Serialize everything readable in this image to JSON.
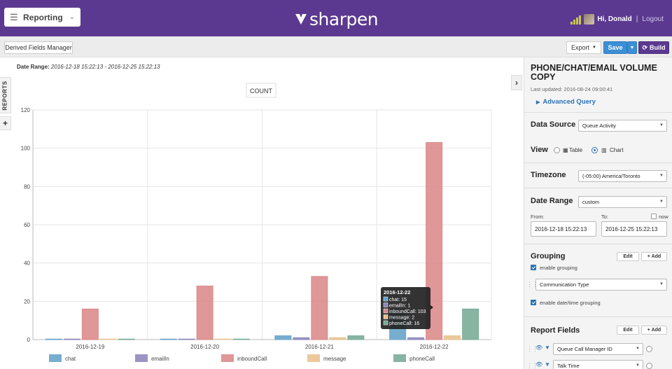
{
  "header": {
    "module": "Reporting",
    "brand": "sharpen",
    "greeting": "Hi, Donald",
    "separator": "|",
    "logout": "Logout"
  },
  "toolbar": {
    "derived_fields": "Derived Fields Manager",
    "export": "Export",
    "save": "Save",
    "build": "Build"
  },
  "main": {
    "date_range_label": "Date Range:",
    "date_range_value": "2016-12-18 15:22:13 - 2016-12-25 15:22:13",
    "reports_tab": "REPORTS",
    "plus": "+",
    "collapse": "›"
  },
  "chart_data": {
    "type": "bar",
    "title": "COUNT",
    "categories": [
      "2016-12-19",
      "2016-12-20",
      "2016-12-21",
      "2016-12-22"
    ],
    "ylim": [
      0,
      120
    ],
    "yticks": [
      0,
      20,
      40,
      60,
      80,
      100,
      120
    ],
    "grid": true,
    "legend_position": "bottom",
    "series": [
      {
        "name": "chat",
        "color": "#5fa0c8",
        "values": [
          0,
          0,
          2,
          15
        ]
      },
      {
        "name": "emailIn",
        "color": "#8a83b8",
        "values": [
          0,
          0,
          1,
          1
        ]
      },
      {
        "name": "inboundCall",
        "color": "#d98585",
        "values": [
          16,
          28,
          33,
          103
        ]
      },
      {
        "name": "message",
        "color": "#e8c08a",
        "values": [
          0,
          0,
          1,
          2
        ]
      },
      {
        "name": "phoneCall",
        "color": "#72a890",
        "values": [
          0,
          0,
          2,
          16
        ]
      }
    ],
    "tooltip": {
      "category": "2016-12-22",
      "lines": [
        "chat: 15",
        "emailIn: 1",
        "inboundCall: 103",
        "message: 2",
        "phoneCall: 16"
      ]
    }
  },
  "panel": {
    "title": "PHONE/CHAT/EMAIL VOLUME COPY",
    "last_updated": "Last updated: 2016-08-24 09:00:41",
    "advanced_query": "Advanced Query",
    "data_source_label": "Data Source",
    "data_source_value": "Queue Activity",
    "view_label": "View",
    "view_table": "Table",
    "view_chart": "Chart",
    "timezone_label": "Timezone",
    "timezone_value": "(-05:00) America/Toronto",
    "date_range_label": "Date Range",
    "date_range_value": "custom",
    "from_label": "From:",
    "to_label": "To:",
    "now_label": "now",
    "from_value": "2016-12-18 15:22:13",
    "to_value": "2016-12-25 15:22:13",
    "grouping_label": "Grouping",
    "edit": "Edit",
    "add": "+ Add",
    "enable_grouping": "enable grouping",
    "grouping_field": "Communication Type",
    "enable_datetime_grouping": "enable date/time grouping",
    "report_fields_label": "Report Fields",
    "fields": [
      "Queue Call Manager ID",
      "Talk Time"
    ]
  }
}
